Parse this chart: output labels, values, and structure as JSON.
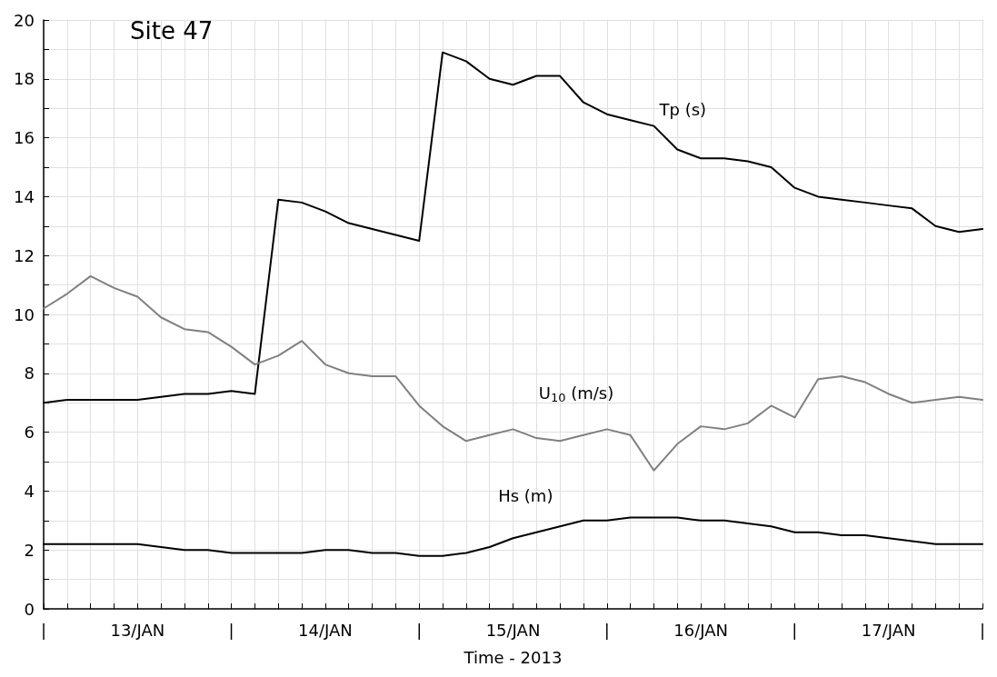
{
  "chart_data": {
    "type": "line",
    "title": "Site 47",
    "xlabel": "Time - 2013",
    "marker": "none",
    "line_style": "solid",
    "grid": true,
    "categories": [
      "|",
      null,
      null,
      null,
      "13/JAN",
      null,
      null,
      null,
      "|",
      null,
      null,
      null,
      "14/JAN",
      null,
      null,
      null,
      "|",
      null,
      null,
      null,
      "15/JAN",
      null,
      null,
      null,
      "|",
      null,
      null,
      null,
      "16/JAN",
      null,
      null,
      null,
      "|",
      null,
      null,
      null,
      "17/JAN",
      null,
      null,
      null,
      "|"
    ],
    "ylim": [
      0,
      20
    ],
    "yticks": [
      0,
      {
        "value": 1,
        "label": null
      },
      2,
      {
        "value": 3,
        "label": null
      },
      4,
      {
        "value": 5,
        "label": null
      },
      6,
      {
        "value": 7,
        "label": null
      },
      8,
      {
        "value": 9,
        "label": null
      },
      10,
      {
        "value": 11,
        "label": null
      },
      12,
      {
        "value": 13,
        "label": null
      },
      14,
      {
        "value": 15,
        "label": null
      },
      16,
      {
        "value": 17,
        "label": null
      },
      18,
      {
        "value": 19,
        "label": null
      },
      20
    ],
    "series": [
      {
        "name": "Tp (s)",
        "color": "#000000",
        "values": [
          7.0,
          7.1,
          7.1,
          7.1,
          7.1,
          7.2,
          7.3,
          7.3,
          7.4,
          7.3,
          13.9,
          13.8,
          13.5,
          13.1,
          12.9,
          12.7,
          12.5,
          18.9,
          18.6,
          18.0,
          17.8,
          18.1,
          18.1,
          17.2,
          16.8,
          16.6,
          16.4,
          15.6,
          15.3,
          15.3,
          15.2,
          15.0,
          14.3,
          14.0,
          13.9,
          13.8,
          13.7,
          13.6,
          13.0,
          12.8,
          12.9
        ]
      },
      {
        "name": "U$_{10}$ (m/s)",
        "color": "#808080",
        "values": [
          10.2,
          10.7,
          11.3,
          10.9,
          10.6,
          9.9,
          9.5,
          9.4,
          8.9,
          8.3,
          8.6,
          9.1,
          8.3,
          8.0,
          7.9,
          7.9,
          6.9,
          6.2,
          5.7,
          5.9,
          6.1,
          5.8,
          5.7,
          5.9,
          6.1,
          5.9,
          4.7,
          5.6,
          6.2,
          6.1,
          6.3,
          6.9,
          6.5,
          7.8,
          7.9,
          7.7,
          7.3,
          7.0,
          7.1,
          7.2,
          7.1
        ]
      },
      {
        "name": "Hs (m)",
        "color": "#000000",
        "values": [
          2.2,
          2.2,
          2.2,
          2.2,
          2.2,
          2.1,
          2.0,
          2.0,
          1.9,
          1.9,
          1.9,
          1.9,
          2.0,
          2.0,
          1.9,
          1.9,
          1.8,
          1.8,
          1.9,
          2.1,
          2.4,
          2.6,
          2.8,
          3.0,
          3.0,
          3.1,
          3.1,
          3.1,
          3.0,
          3.0,
          2.9,
          2.8,
          2.6,
          2.6,
          2.5,
          2.5,
          2.4,
          2.3,
          2.2,
          2.2,
          2.2
        ]
      }
    ]
  }
}
